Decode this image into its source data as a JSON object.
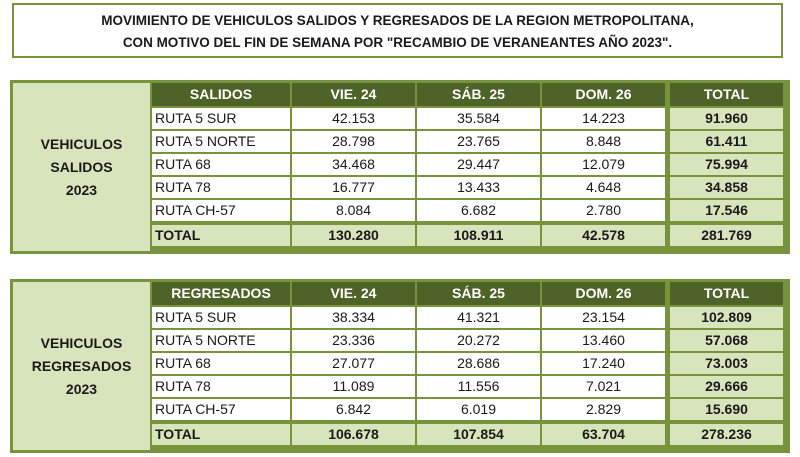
{
  "title": {
    "line1": "MOVIMIENTO DE VEHICULOS SALIDOS Y REGRESADOS DE LA REGION METROPOLITANA,",
    "line2": "CON MOTIVO DEL FIN DE SEMANA POR \"RECAMBIO DE VERANEANTES AÑO 2023\"."
  },
  "tables": [
    {
      "side_label": "VEHICULOS\nSALIDOS\n2023",
      "headers": [
        "SALIDOS",
        "VIE. 24",
        "SÁB. 25",
        "DOM. 26",
        "TOTAL"
      ],
      "rows": [
        [
          "RUTA 5 SUR",
          "42.153",
          "35.584",
          "14.223",
          "91.960"
        ],
        [
          "RUTA 5 NORTE",
          "28.798",
          "23.765",
          "8.848",
          "61.411"
        ],
        [
          "RUTA 68",
          "34.468",
          "29.447",
          "12.079",
          "75.994"
        ],
        [
          "RUTA 78",
          "16.777",
          "13.433",
          "4.648",
          "34.858"
        ],
        [
          "RUTA CH-57",
          "8.084",
          "6.682",
          "2.780",
          "17.546"
        ]
      ],
      "total": [
        "TOTAL",
        "130.280",
        "108.911",
        "42.578",
        "281.769"
      ]
    },
    {
      "side_label": "VEHICULOS\nREGRESADOS\n2023",
      "headers": [
        "REGRESADOS",
        "VIE. 24",
        "SÁB. 25",
        "DOM. 26",
        "TOTAL"
      ],
      "rows": [
        [
          "RUTA 5 SUR",
          "38.334",
          "41.321",
          "23.154",
          "102.809"
        ],
        [
          "RUTA 5 NORTE",
          "23.336",
          "20.272",
          "13.460",
          "57.068"
        ],
        [
          "RUTA 68",
          "27.077",
          "28.686",
          "17.240",
          "73.003"
        ],
        [
          "RUTA 78",
          "11.089",
          "11.556",
          "7.021",
          "29.666"
        ],
        [
          "RUTA CH-57",
          "6.842",
          "6.019",
          "2.829",
          "15.690"
        ]
      ],
      "total": [
        "TOTAL",
        "106.678",
        "107.854",
        "63.704",
        "278.236"
      ]
    }
  ]
}
